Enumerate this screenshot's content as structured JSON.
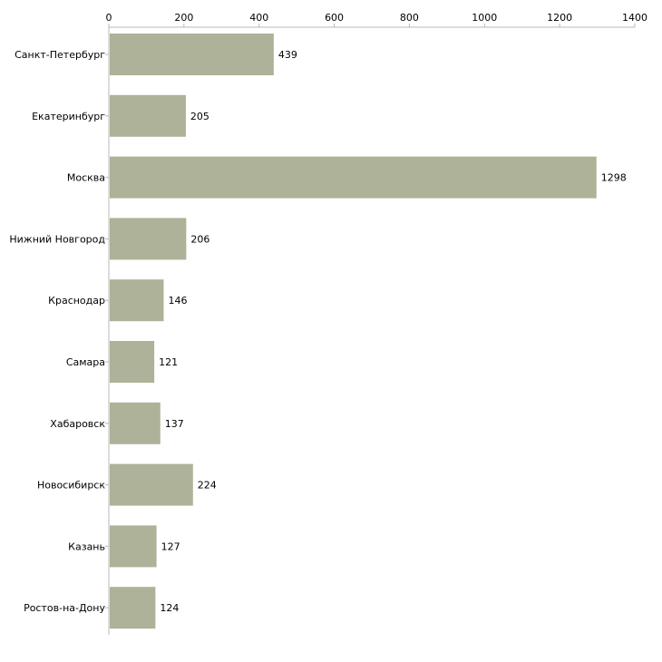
{
  "chart_data": {
    "type": "bar",
    "orientation": "horizontal",
    "title": "",
    "xlabel": "",
    "ylabel": "",
    "xlim": [
      0,
      1400
    ],
    "x_ticks": [
      0,
      200,
      400,
      600,
      800,
      1000,
      1200,
      1400
    ],
    "x_axis_position": "top",
    "grid": false,
    "bar_color": "#adb298",
    "categories": [
      "Санкт-Петербург",
      "Екатеринбург",
      "Москва",
      "Нижний Новгород",
      "Краснодар",
      "Самара",
      "Хабаровск",
      "Новосибирск",
      "Казань",
      "Ростов-на-Дону"
    ],
    "values": [
      439,
      205,
      1298,
      206,
      146,
      121,
      137,
      224,
      127,
      124
    ]
  }
}
